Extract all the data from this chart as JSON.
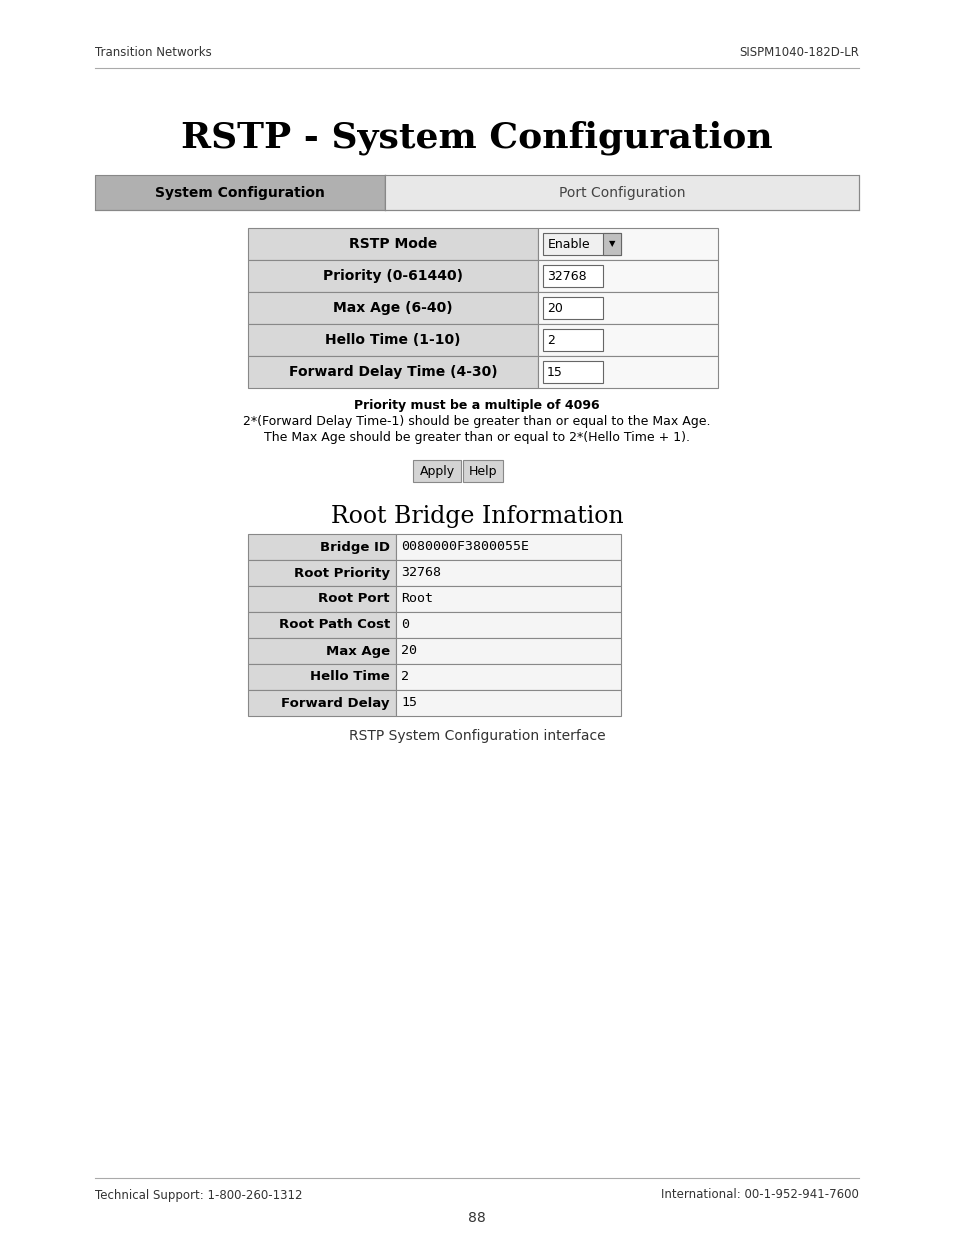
{
  "page_title": "RSTP - System Configuration",
  "header_left": "Transition Networks",
  "header_right": "SISPM1040-182D-LR",
  "footer_left": "Technical Support: 1-800-260-1312",
  "footer_right": "International: 00-1-952-941-7600",
  "footer_page": "88",
  "tab1": "System Configuration",
  "tab2": "Port Configuration",
  "config_rows": [
    {
      "label": "RSTP Mode",
      "value": "Enable",
      "is_dropdown": true
    },
    {
      "label": "Priority (0-61440)",
      "value": "32768",
      "is_dropdown": false
    },
    {
      "label": "Max Age (6-40)",
      "value": "20",
      "is_dropdown": false
    },
    {
      "label": "Hello Time (1-10)",
      "value": "2",
      "is_dropdown": false
    },
    {
      "label": "Forward Delay Time (4-30)",
      "value": "15",
      "is_dropdown": false
    }
  ],
  "note_lines": [
    [
      "Priority must be a multiple of 4096",
      true
    ],
    [
      "2*(Forward Delay Time-1) should be greater than or equal to the Max Age.",
      false
    ],
    [
      "The Max Age should be greater than or equal to 2*(Hello Time + 1).",
      false
    ]
  ],
  "root_bridge_title": "Root Bridge Information",
  "root_bridge_rows": [
    {
      "label": "Bridge ID",
      "value": "0080000F3800055E"
    },
    {
      "label": "Root Priority",
      "value": "32768"
    },
    {
      "label": "Root Port",
      "value": "Root"
    },
    {
      "label": "Root Path Cost",
      "value": "0"
    },
    {
      "label": "Max Age",
      "value": "20"
    },
    {
      "label": "Hello Time",
      "value": "2"
    },
    {
      "label": "Forward Delay",
      "value": "15"
    }
  ],
  "caption": "RSTP System Configuration interface",
  "bg_color": "#ffffff",
  "tab_active_color": "#b0b0b0",
  "tab_inactive_color": "#e8e8e8",
  "table_label_color": "#d8d8d8",
  "table_value_color": "#f5f5f5",
  "table_border_color": "#888888",
  "tab_bg_color": "#d0d0d0"
}
